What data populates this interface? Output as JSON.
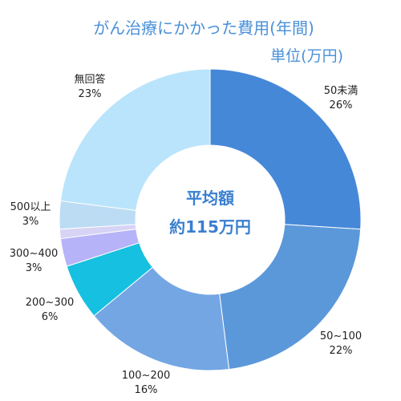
{
  "chart_data": {
    "type": "pie",
    "title": "がん治療にかかった費用(年間)",
    "subtitle": "単位(万円)",
    "center_label": [
      "平均額",
      "約115万円"
    ],
    "categories": [
      "50未満",
      "50~100",
      "100~200",
      "200~300",
      "300~400",
      "500以上",
      "無回答"
    ],
    "values": [
      26,
      22,
      16,
      6,
      3,
      3,
      23
    ],
    "value_labels": [
      "26%",
      "22%",
      "16%",
      "6%",
      "3%",
      "3%",
      "23%"
    ],
    "colors": [
      "#4688d8",
      "#5b98da",
      "#74a6e4",
      "#16c0e0",
      "#b7b3f8",
      "#bcdcf4",
      "#b9e4fb"
    ],
    "extra_sliver_color": "#d6d3f5",
    "legend": "none"
  }
}
